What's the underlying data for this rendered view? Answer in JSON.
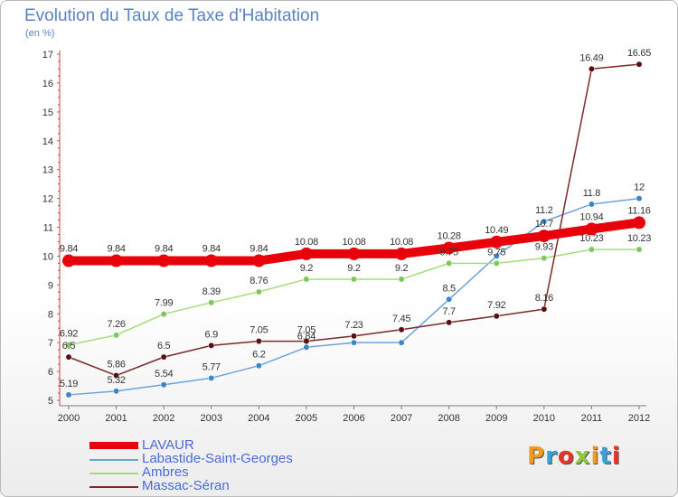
{
  "title": "Evolution du Taux de Taxe d'Habitation",
  "unit": "(en %)",
  "brand": {
    "text": "Proxiti",
    "colors": [
      "#f39a1e",
      "#3aa0d8",
      "#e8342a",
      "#8dc63f",
      "#f39a1e",
      "#3aa0d8",
      "#e8342a"
    ]
  },
  "chart_data": {
    "type": "line",
    "title": "Evolution du Taux de Taxe d'Habitation",
    "ylabel": "(en %)",
    "xlabel": "",
    "x": [
      "2000",
      "2001",
      "2002",
      "2003",
      "2004",
      "2005",
      "2006",
      "2007",
      "2008",
      "2009",
      "2010",
      "2011",
      "2012"
    ],
    "ylim": [
      5,
      17
    ],
    "yticks": [
      "5",
      "6",
      "7",
      "8",
      "9",
      "10",
      "11",
      "12",
      "13",
      "14",
      "15",
      "16",
      "17"
    ],
    "grid": false,
    "legend_position": "bottom-left",
    "series": [
      {
        "name": "LAVAUR",
        "color": "#e8000b",
        "marker": "#e8000b",
        "values": [
          9.84,
          9.84,
          9.84,
          9.84,
          9.84,
          10.08,
          10.08,
          10.08,
          10.28,
          10.49,
          10.7,
          10.94,
          11.16
        ],
        "labels": [
          "9.84",
          "9.84",
          "9.84",
          "9.84",
          "9.84",
          "10.08",
          "10.08",
          "10.08",
          "10.28",
          "10.49",
          "10.7",
          "10.94",
          "11.16"
        ]
      },
      {
        "name": "Labastide-Saint-Georges",
        "color": "#6fa3d8",
        "marker": "#3c86c8",
        "values": [
          5.19,
          5.32,
          5.54,
          5.77,
          6.2,
          6.84,
          7.0,
          7.0,
          8.5,
          10.0,
          11.2,
          11.8,
          12.0
        ],
        "labels": [
          "5.19",
          "5.32",
          "5.54",
          "5.77",
          "6.2",
          "6.84",
          "",
          "",
          "8.5",
          "",
          "11.2",
          "11.8",
          "12"
        ]
      },
      {
        "name": "Ambres",
        "color": "#a6dc7a",
        "marker": "#7dc85a",
        "values": [
          6.92,
          7.26,
          7.99,
          8.39,
          8.76,
          9.2,
          9.2,
          9.2,
          9.75,
          9.75,
          9.93,
          10.23,
          10.23
        ],
        "labels": [
          "6.92",
          "7.26",
          "7.99",
          "8.39",
          "8.76",
          "9.2",
          "9.2",
          "9.2",
          "9.75",
          "9.75",
          "9.93",
          "10.23",
          "10.23"
        ]
      },
      {
        "name": "Massac-Séran",
        "color": "#7a2a2a",
        "marker": "#5a1010",
        "values": [
          6.5,
          5.86,
          6.5,
          6.9,
          7.05,
          7.05,
          7.23,
          7.45,
          7.7,
          7.92,
          8.16,
          16.49,
          16.65
        ],
        "labels": [
          "6.5",
          "5.86",
          "6.5",
          "6.9",
          "7.05",
          "7.05",
          "7.23",
          "7.45",
          "7.7",
          "7.92",
          "8.16",
          "16.49",
          "16.65"
        ]
      }
    ]
  }
}
